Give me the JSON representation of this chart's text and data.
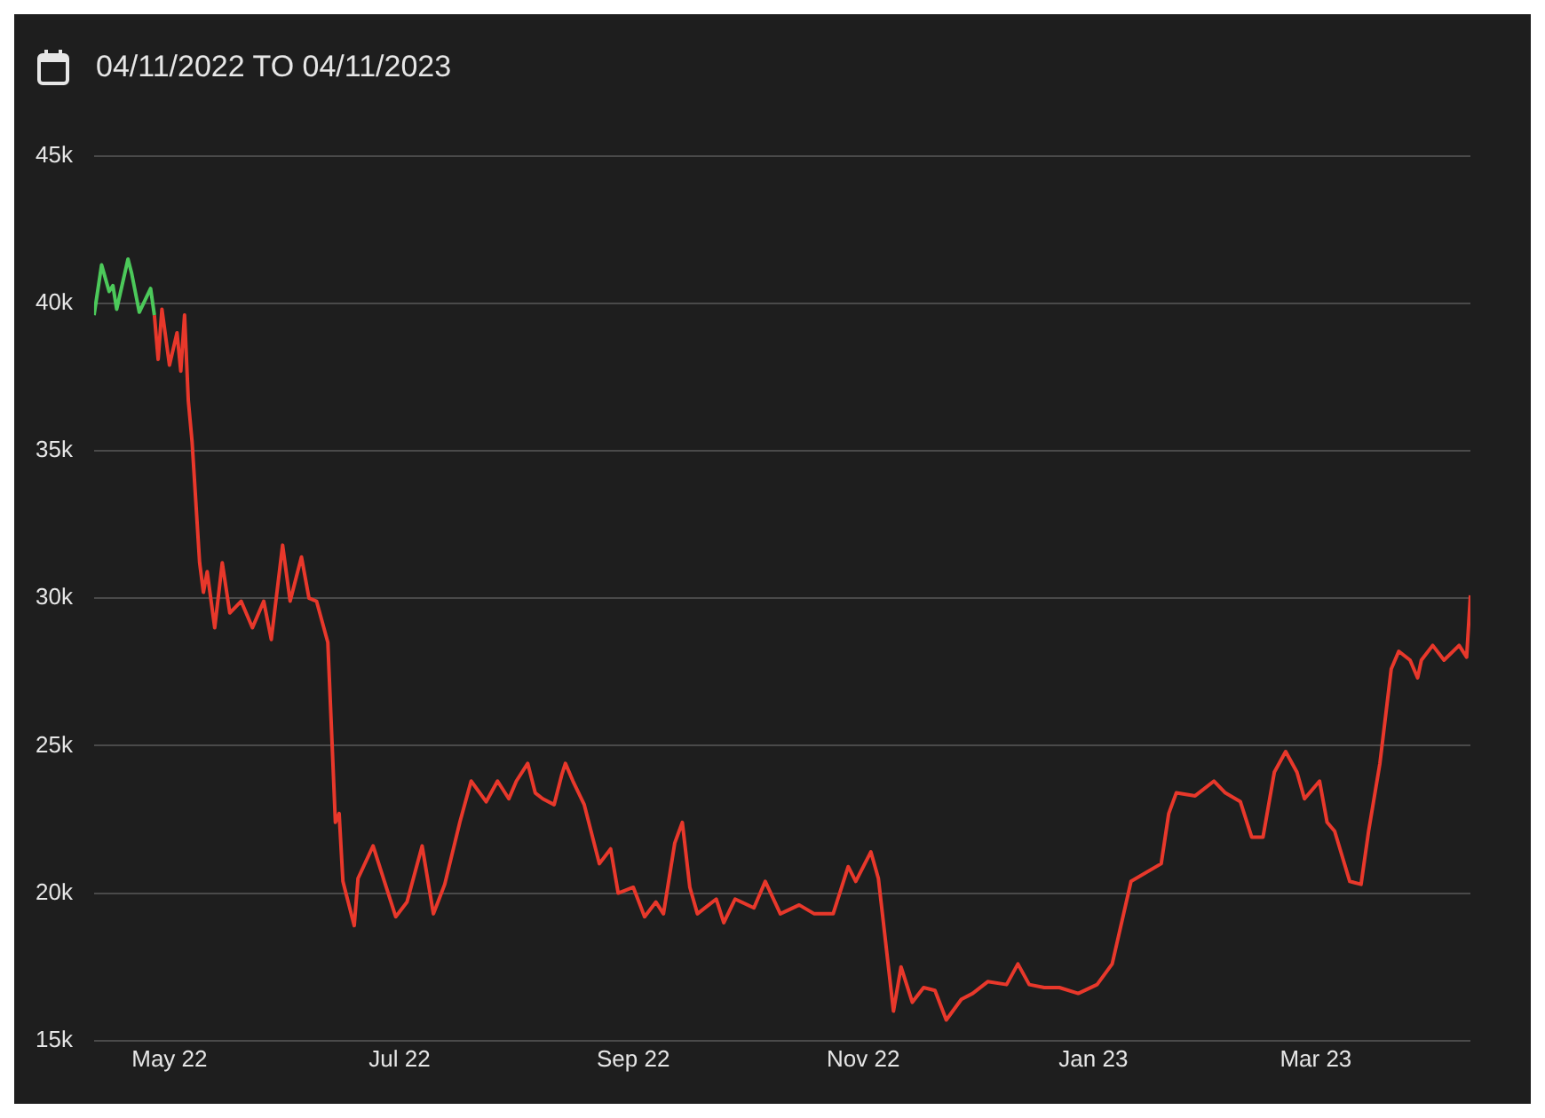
{
  "chart_data": {
    "type": "line",
    "title": "04/11/2022 TO 04/11/2023",
    "xlim": [
      "2022-04-11",
      "2023-04-11"
    ],
    "xticks": [
      {
        "value": "2022-05-01",
        "label": "May 22"
      },
      {
        "value": "2022-07-01",
        "label": "Jul 22"
      },
      {
        "value": "2022-09-01",
        "label": "Sep 22"
      },
      {
        "value": "2022-11-01",
        "label": "Nov 22"
      },
      {
        "value": "2023-01-01",
        "label": "Jan 23"
      },
      {
        "value": "2023-03-01",
        "label": "Mar 23"
      }
    ],
    "ylim": [
      15000,
      45000
    ],
    "yticks": [
      {
        "value": 15000,
        "label": "15k"
      },
      {
        "value": 20000,
        "label": "20k"
      },
      {
        "value": 25000,
        "label": "25k"
      },
      {
        "value": 30000,
        "label": "30k"
      },
      {
        "value": 35000,
        "label": "35k"
      },
      {
        "value": 40000,
        "label": "40k"
      },
      {
        "value": 45000,
        "label": "45k"
      }
    ],
    "grid": "y",
    "legend": false,
    "marker": "none",
    "line_style": "solid",
    "series": [
      {
        "color": "#4cc95a",
        "x": [
          "2022-04-11",
          "2022-04-13",
          "2022-04-15",
          "2022-04-16",
          "2022-04-17",
          "2022-04-20",
          "2022-04-21",
          "2022-04-23",
          "2022-04-26",
          "2022-04-27"
        ],
        "values": [
          39600,
          41300,
          40400,
          40600,
          39800,
          41500,
          41000,
          39700,
          40500,
          39600
        ]
      },
      {
        "color": "#e8382b",
        "x": [
          "2022-04-27",
          "2022-04-28",
          "2022-04-29",
          "2022-05-01",
          "2022-05-03",
          "2022-05-04",
          "2022-05-05",
          "2022-05-06",
          "2022-05-07",
          "2022-05-09",
          "2022-05-10",
          "2022-05-11",
          "2022-05-13",
          "2022-05-15",
          "2022-05-17",
          "2022-05-20",
          "2022-05-23",
          "2022-05-26",
          "2022-05-28",
          "2022-05-31",
          "2022-06-02",
          "2022-06-05",
          "2022-06-07",
          "2022-06-09",
          "2022-06-12",
          "2022-06-14",
          "2022-06-15",
          "2022-06-16",
          "2022-06-19",
          "2022-06-20",
          "2022-06-24",
          "2022-06-27",
          "2022-06-30",
          "2022-07-03",
          "2022-07-07",
          "2022-07-10",
          "2022-07-13",
          "2022-07-17",
          "2022-07-20",
          "2022-07-24",
          "2022-07-27",
          "2022-07-30",
          "2022-08-01",
          "2022-08-04",
          "2022-08-06",
          "2022-08-08",
          "2022-08-11",
          "2022-08-13",
          "2022-08-14",
          "2022-08-16",
          "2022-08-19",
          "2022-08-23",
          "2022-08-26",
          "2022-08-28",
          "2022-09-01",
          "2022-09-04",
          "2022-09-07",
          "2022-09-09",
          "2022-09-12",
          "2022-09-14",
          "2022-09-16",
          "2022-09-18",
          "2022-09-23",
          "2022-09-25",
          "2022-09-28",
          "2022-10-03",
          "2022-10-06",
          "2022-10-10",
          "2022-10-15",
          "2022-10-19",
          "2022-10-24",
          "2022-10-28",
          "2022-10-30",
          "2022-11-03",
          "2022-11-05",
          "2022-11-09",
          "2022-11-11",
          "2022-11-14",
          "2022-11-17",
          "2022-11-20",
          "2022-11-23",
          "2022-11-27",
          "2022-11-30",
          "2022-12-04",
          "2022-12-09",
          "2022-12-12",
          "2022-12-15",
          "2022-12-19",
          "2022-12-23",
          "2022-12-28",
          "2023-01-02",
          "2023-01-06",
          "2023-01-11",
          "2023-01-19",
          "2023-01-21",
          "2023-01-23",
          "2023-01-28",
          "2023-02-02",
          "2023-02-05",
          "2023-02-09",
          "2023-02-12",
          "2023-02-15",
          "2023-02-18",
          "2023-02-21",
          "2023-02-24",
          "2023-02-26",
          "2023-03-02",
          "2023-03-04",
          "2023-03-06",
          "2023-03-10",
          "2023-03-13",
          "2023-03-15",
          "2023-03-18",
          "2023-03-21",
          "2023-03-23",
          "2023-03-26",
          "2023-03-28",
          "2023-03-29",
          "2023-04-01",
          "2023-04-04",
          "2023-04-08",
          "2023-04-10",
          "2023-04-11"
        ],
        "values": [
          39600,
          38100,
          39800,
          37900,
          39000,
          37700,
          39600,
          36700,
          35300,
          31200,
          30200,
          30900,
          29000,
          31200,
          29500,
          29900,
          29000,
          29900,
          28600,
          31800,
          29900,
          31400,
          30000,
          29900,
          28500,
          22400,
          22700,
          20400,
          18900,
          20500,
          21600,
          20400,
          19200,
          19700,
          21600,
          19300,
          20300,
          22400,
          23800,
          23100,
          23800,
          23200,
          23800,
          24400,
          23400,
          23200,
          23000,
          24000,
          24400,
          23800,
          23000,
          21000,
          21500,
          20000,
          20200,
          19200,
          19700,
          19300,
          21700,
          22400,
          20200,
          19300,
          19800,
          19000,
          19800,
          19500,
          20400,
          19300,
          19600,
          19300,
          19300,
          20900,
          20400,
          21400,
          20500,
          16000,
          17500,
          16300,
          16800,
          16700,
          15700,
          16400,
          16600,
          17000,
          16900,
          17600,
          16900,
          16800,
          16800,
          16600,
          16900,
          17600,
          20400,
          21000,
          22700,
          23400,
          23300,
          23800,
          23400,
          23100,
          21900,
          21900,
          24100,
          24800,
          24100,
          23200,
          23800,
          22400,
          22100,
          20400,
          20300,
          22100,
          24400,
          27600,
          28200,
          27900,
          27300,
          27900,
          28400,
          27900,
          28400,
          28000,
          30100
        ]
      }
    ]
  }
}
